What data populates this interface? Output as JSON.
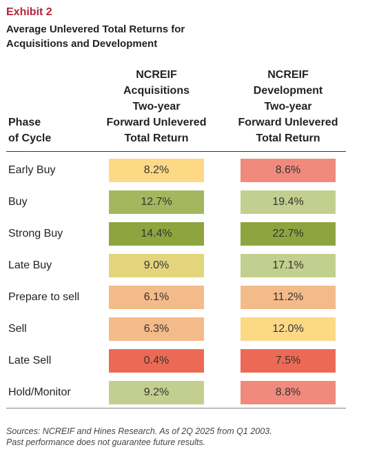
{
  "header": {
    "exhibit": "Exhibit 2",
    "title": "Average Unlevered Total Returns for Acquisitions and Development"
  },
  "chart_data": {
    "type": "table",
    "columns": [
      {
        "id": "phase",
        "label_lines": [
          "Phase",
          "of Cycle"
        ]
      },
      {
        "id": "acquisitions",
        "label_lines": [
          "NCREIF",
          "Acquisitions",
          "Two-year",
          "Forward Unlevered",
          "Total Return"
        ]
      },
      {
        "id": "development",
        "label_lines": [
          "NCREIF",
          "Development",
          "Two-year",
          "Forward Unlevered",
          "Total Return"
        ]
      }
    ],
    "rows": [
      {
        "phase": "Early Buy",
        "acq": "8.2%",
        "acq_value": 8.2,
        "acq_color": "#fdd985",
        "dev": "8.6%",
        "dev_value": 8.6,
        "dev_color": "#f08a7c"
      },
      {
        "phase": "Buy",
        "acq": "12.7%",
        "acq_value": 12.7,
        "acq_color": "#a4b75e",
        "dev": "19.4%",
        "dev_value": 19.4,
        "dev_color": "#c3cf8e"
      },
      {
        "phase": "Strong Buy",
        "acq": "14.4%",
        "acq_value": 14.4,
        "acq_color": "#8ea53f",
        "dev": "22.7%",
        "dev_value": 22.7,
        "dev_color": "#8ea53f"
      },
      {
        "phase": "Late Buy",
        "acq": "9.0%",
        "acq_value": 9.0,
        "acq_color": "#e3d57c",
        "dev": "17.1%",
        "dev_value": 17.1,
        "dev_color": "#c3cf8e"
      },
      {
        "phase": "Prepare to sell",
        "acq": "6.1%",
        "acq_value": 6.1,
        "acq_color": "#f4bb8a",
        "dev": "11.2%",
        "dev_value": 11.2,
        "dev_color": "#f4bb8a"
      },
      {
        "phase": "Sell",
        "acq": "6.3%",
        "acq_value": 6.3,
        "acq_color": "#f4bb8a",
        "dev": "12.0%",
        "dev_value": 12.0,
        "dev_color": "#fdd985"
      },
      {
        "phase": "Late Sell",
        "acq": "0.4%",
        "acq_value": 0.4,
        "acq_color": "#ec6a55",
        "dev": "7.5%",
        "dev_value": 7.5,
        "dev_color": "#ec6a55"
      },
      {
        "phase": "Hold/Monitor",
        "acq": "9.2%",
        "acq_value": 9.2,
        "acq_color": "#c3cf8e",
        "dev": "8.8%",
        "dev_value": 8.8,
        "dev_color": "#f08a7c"
      }
    ]
  },
  "footer": {
    "source_lines": [
      "Sources: NCREIF and Hines Research. As of 2Q 2025 from Q1 2003.",
      "Past performance does not guarantee future results."
    ]
  }
}
